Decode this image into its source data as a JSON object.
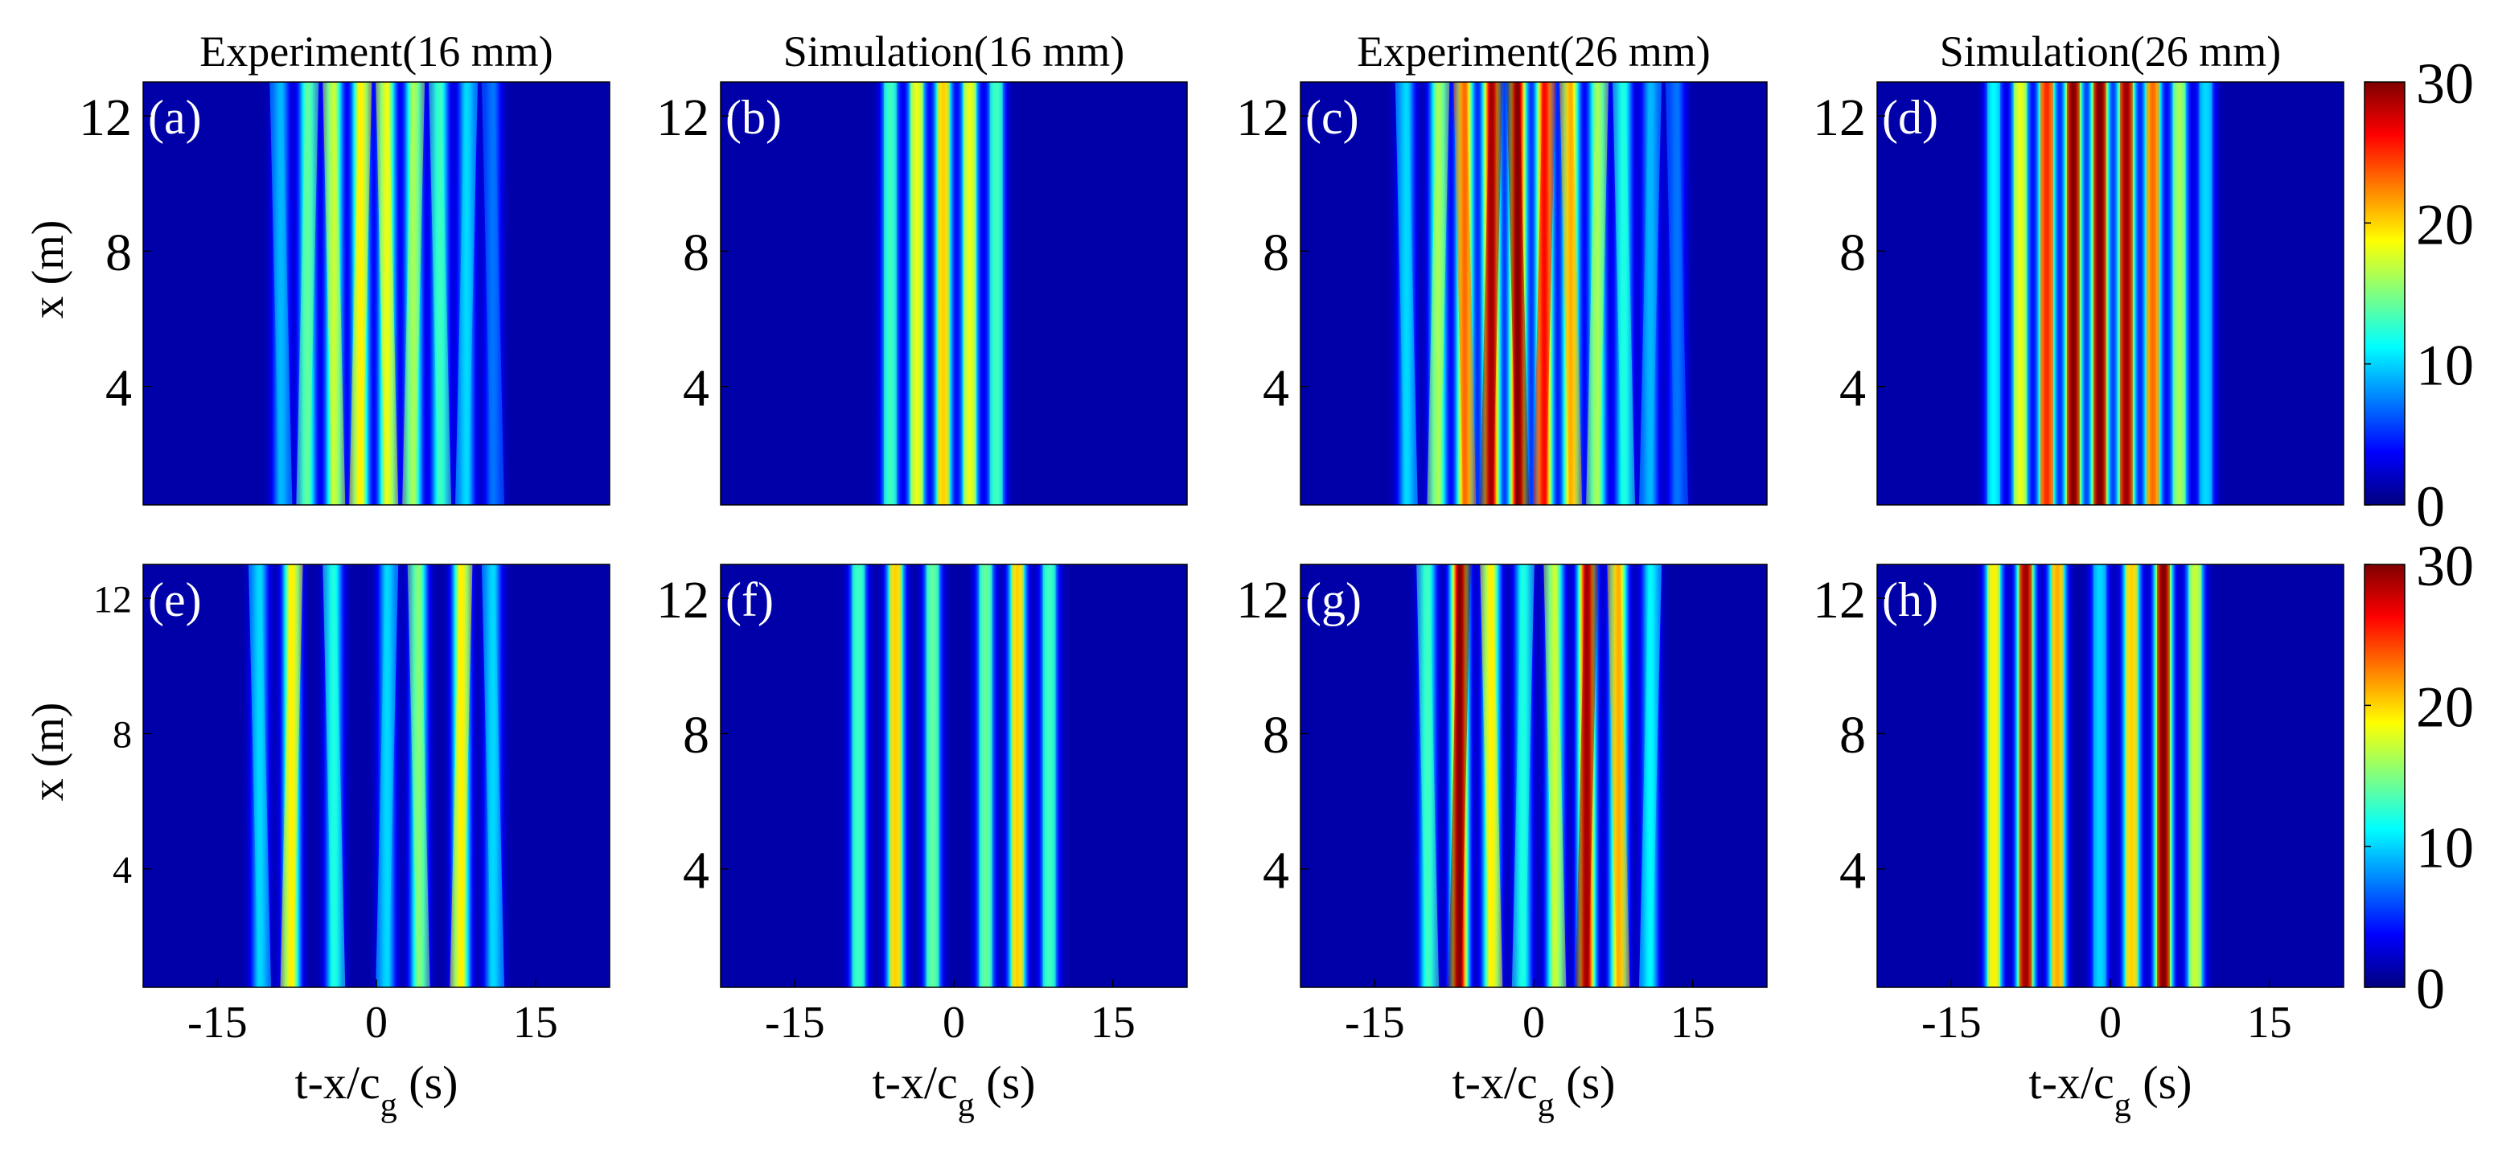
{
  "chart_data": {
    "type": "heatmap",
    "colormap": "jet",
    "color_range": [
      0,
      30
    ],
    "colorbars": [
      {
        "ticks": [
          "0",
          "10",
          "20",
          "30"
        ]
      },
      {
        "ticks": [
          "0",
          "10",
          "20",
          "30"
        ]
      }
    ],
    "shared": {
      "xlabel_main": "t-x/c",
      "xlabel_sub": "g",
      "xlabel_tail": " (s)",
      "ylabel": "x (m)",
      "x_range": [
        -22,
        22
      ],
      "y_range": [
        0.5,
        13
      ],
      "x_ticks": [
        -15,
        0,
        15
      ],
      "y_ticks": [
        4,
        8,
        12
      ]
    },
    "panels": [
      {
        "label": "(a)",
        "title": "Experiment(16 mm)",
        "row": 0,
        "col": 0,
        "source": "experiment",
        "bands": [
          {
            "t": -9,
            "a": 8
          },
          {
            "t": -6.5,
            "a": 13
          },
          {
            "t": -4,
            "a": 16
          },
          {
            "t": -1.5,
            "a": 18
          },
          {
            "t": 1,
            "a": 17
          },
          {
            "t": 3.5,
            "a": 15
          },
          {
            "t": 6,
            "a": 12
          },
          {
            "t": 8.5,
            "a": 9
          },
          {
            "t": 11,
            "a": 6
          }
        ]
      },
      {
        "label": "(b)",
        "title": "Simulation(16 mm)",
        "row": 0,
        "col": 1,
        "source": "simulation",
        "bands": [
          {
            "t": -6,
            "a": 12
          },
          {
            "t": -3.5,
            "a": 17
          },
          {
            "t": -1,
            "a": 19
          },
          {
            "t": 1.5,
            "a": 17
          },
          {
            "t": 4,
            "a": 12
          }
        ]
      },
      {
        "label": "(c)",
        "title": "Experiment(26 mm)",
        "row": 0,
        "col": 2,
        "source": "experiment",
        "bands": [
          {
            "t": -12,
            "a": 9
          },
          {
            "t": -9,
            "a": 15
          },
          {
            "t": -6.5,
            "a": 22
          },
          {
            "t": -4,
            "a": 28
          },
          {
            "t": -1.5,
            "a": 29
          },
          {
            "t": 1,
            "a": 25
          },
          {
            "t": 3.5,
            "a": 20
          },
          {
            "t": 6,
            "a": 15
          },
          {
            "t": 8.5,
            "a": 11
          },
          {
            "t": 11,
            "a": 8
          },
          {
            "t": 13.5,
            "a": 6
          }
        ]
      },
      {
        "label": "(d)",
        "title": "Simulation(26 mm)",
        "row": 0,
        "col": 3,
        "source": "simulation",
        "bands": [
          {
            "t": -11,
            "a": 10
          },
          {
            "t": -8.5,
            "a": 17
          },
          {
            "t": -6,
            "a": 24
          },
          {
            "t": -3.5,
            "a": 29
          },
          {
            "t": -1,
            "a": 30
          },
          {
            "t": 1.5,
            "a": 28
          },
          {
            "t": 4,
            "a": 22
          },
          {
            "t": 6.5,
            "a": 15
          },
          {
            "t": 9,
            "a": 9
          }
        ]
      },
      {
        "label": "(e)",
        "title": "",
        "row": 1,
        "col": 0,
        "source": "experiment",
        "bands": [
          {
            "t": -11,
            "a": 9
          },
          {
            "t": -8,
            "a": 18
          },
          {
            "t": -4,
            "a": 11
          },
          {
            "t": 1,
            "a": 9
          },
          {
            "t": 4,
            "a": 14
          },
          {
            "t": 8,
            "a": 18
          },
          {
            "t": 11,
            "a": 9
          }
        ]
      },
      {
        "label": "(f)",
        "title": "",
        "row": 1,
        "col": 1,
        "source": "simulation",
        "bands": [
          {
            "t": -9,
            "a": 12
          },
          {
            "t": -5.5,
            "a": 19
          },
          {
            "t": -2,
            "a": 13
          },
          {
            "t": 3,
            "a": 13
          },
          {
            "t": 6,
            "a": 19
          },
          {
            "t": 9,
            "a": 12
          }
        ]
      },
      {
        "label": "(g)",
        "title": "",
        "row": 1,
        "col": 2,
        "source": "experiment",
        "bands": [
          {
            "t": -10,
            "a": 12
          },
          {
            "t": -7,
            "a": 29
          },
          {
            "t": -4,
            "a": 18
          },
          {
            "t": -1,
            "a": 11
          },
          {
            "t": 2,
            "a": 16
          },
          {
            "t": 5,
            "a": 28
          },
          {
            "t": 8,
            "a": 20
          },
          {
            "t": 11,
            "a": 10
          }
        ]
      },
      {
        "label": "(h)",
        "title": "",
        "row": 1,
        "col": 3,
        "source": "simulation",
        "bands": [
          {
            "t": -11,
            "a": 18
          },
          {
            "t": -8,
            "a": 28
          },
          {
            "t": -5,
            "a": 20
          },
          {
            "t": -1,
            "a": 9
          },
          {
            "t": 2,
            "a": 19
          },
          {
            "t": 5,
            "a": 29
          },
          {
            "t": 8,
            "a": 16
          }
        ]
      }
    ]
  }
}
